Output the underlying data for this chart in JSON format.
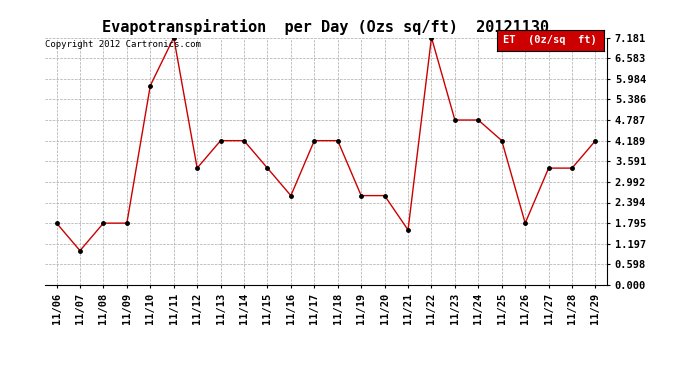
{
  "title": "Evapotranspiration  per Day (Ozs sq/ft)  20121130",
  "copyright": "Copyright 2012 Cartronics.com",
  "legend_label": "ET  (0z/sq  ft)",
  "dates": [
    "11/06",
    "11/07",
    "11/08",
    "11/09",
    "11/10",
    "11/11",
    "11/12",
    "11/13",
    "11/14",
    "11/15",
    "11/16",
    "11/17",
    "11/18",
    "11/19",
    "11/20",
    "11/21",
    "11/22",
    "11/23",
    "11/24",
    "11/25",
    "11/26",
    "11/27",
    "11/28",
    "11/29"
  ],
  "values": [
    1.795,
    0.997,
    1.795,
    1.795,
    5.784,
    7.181,
    3.392,
    4.189,
    4.189,
    3.392,
    2.594,
    4.189,
    4.189,
    2.594,
    2.594,
    1.597,
    7.181,
    4.787,
    4.787,
    4.189,
    1.795,
    3.392,
    3.392,
    4.189
  ],
  "yticks": [
    0.0,
    0.598,
    1.197,
    1.795,
    2.394,
    2.992,
    3.591,
    4.189,
    4.787,
    5.386,
    5.984,
    6.583,
    7.181
  ],
  "ymin": 0.0,
  "ymax": 7.181,
  "line_color": "#cc0000",
  "marker_color": "#000000",
  "legend_bg": "#cc0000",
  "legend_text_color": "#ffffff",
  "bg_color": "#ffffff",
  "grid_color": "#aaaaaa",
  "title_fontsize": 11,
  "copyright_fontsize": 6.5,
  "tick_fontsize": 7.5,
  "legend_fontsize": 7.5
}
